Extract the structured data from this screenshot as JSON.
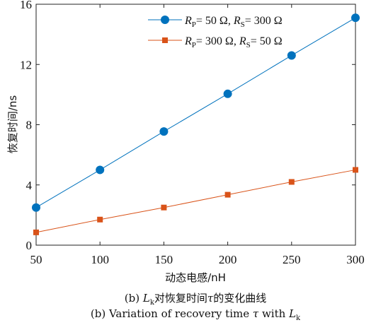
{
  "chart_data": {
    "type": "line",
    "x": [
      50,
      100,
      150,
      200,
      250,
      300
    ],
    "xlim": [
      50,
      300
    ],
    "ylim": [
      0,
      16
    ],
    "xticks": [
      50,
      100,
      150,
      200,
      250,
      300
    ],
    "yticks": [
      0,
      4,
      8,
      12,
      16
    ],
    "xlabel": "动态电感/nH",
    "ylabel": "恢复时间/ns",
    "grid": false,
    "legend_position": "top-right",
    "series": [
      {
        "name": "R_P = 50 Ω, R_S = 300 Ω",
        "legend": {
          "r1": "R",
          "s1": "P",
          "t1": "= 50 Ω, ",
          "r2": "R",
          "s2": "S",
          "t2": "= 300 Ω"
        },
        "color": "#0072BD",
        "marker": "circle",
        "values": [
          2.5,
          5.0,
          7.55,
          10.05,
          12.6,
          15.1
        ]
      },
      {
        "name": "R_P = 300 Ω, R_S = 50 Ω",
        "legend": {
          "r1": "R",
          "s1": "P",
          "t1": "= 300 Ω, ",
          "r2": "R",
          "s2": "S",
          "t2": "= 50 Ω"
        },
        "color": "#D95319",
        "marker": "square",
        "values": [
          0.85,
          1.7,
          2.5,
          3.35,
          4.2,
          5.0
        ]
      }
    ]
  },
  "caption": {
    "line1": {
      "pre": "(b) ",
      "L": "L",
      "Lsub": "k",
      "mid": "对恢复时间",
      "tau": "τ",
      "post": "的变化曲线"
    },
    "line2": {
      "pre": "(b) Variation of recovery time ",
      "tau": "τ",
      "mid": " with ",
      "L": "L",
      "Lsub": "k"
    }
  }
}
